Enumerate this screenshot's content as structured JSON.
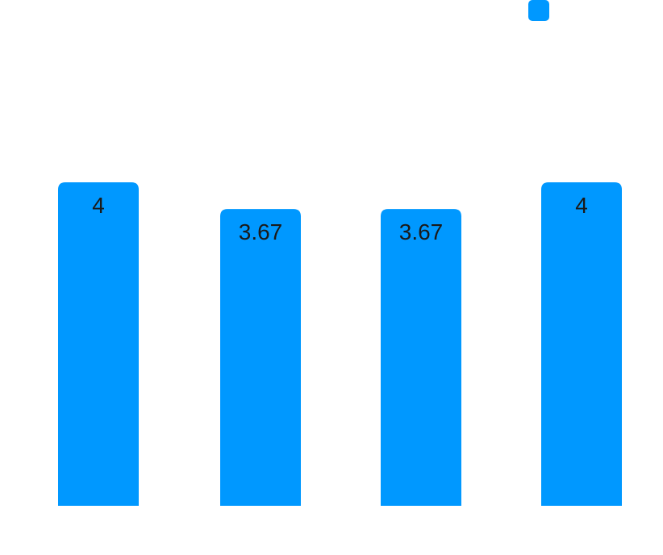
{
  "chart_data": {
    "type": "bar",
    "values": [
      4,
      3.67,
      3.67,
      4
    ],
    "value_labels": [
      "4",
      "3.67",
      "3.67",
      "4"
    ],
    "ylim": [
      0,
      4
    ],
    "grid": false,
    "legend_position": "top-right",
    "series": [
      {
        "color": "#0098FF",
        "values": [
          4,
          3.67,
          3.67,
          4
        ]
      }
    ]
  },
  "colors": {
    "bar": "#0098FF",
    "label": "#1a1a1a",
    "background": "#ffffff"
  }
}
